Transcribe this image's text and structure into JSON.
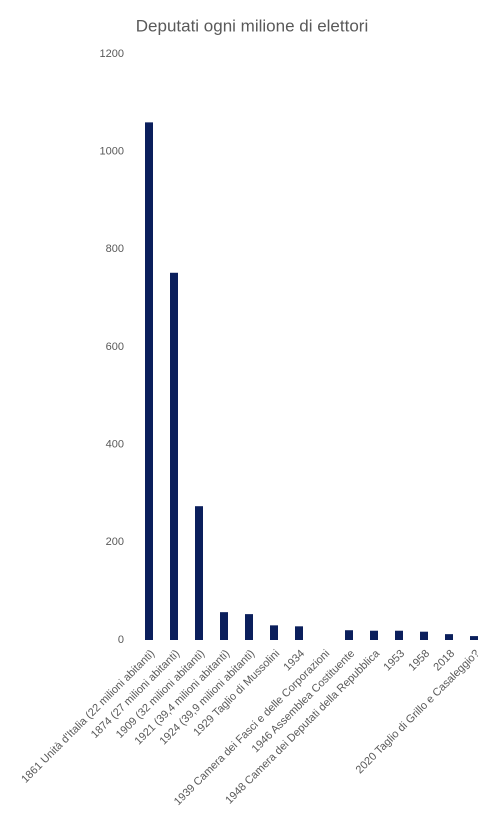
{
  "chart_data": {
    "type": "bar",
    "title": "Deputati ogni milione di elettori",
    "categories": [
      "1861 Unità d'Italia (22 milioni abitanti)",
      "1874 (27 milioni abitanti)",
      "1909 (32 milioni abitanti)",
      "1921 (39,4 milioni abitanti)",
      "1924 (39,9 milioni abitanti)",
      "1929 Taglio di Mussolini",
      "1934",
      "1939 Camera dei Fasci e delle Corporazioni",
      "1946 Assemblea Costituente",
      "1948 Camera dei Deputati della Repubblica",
      "1953",
      "1958",
      "2018",
      "2020 Taglio di Grillo e Casaleggio?"
    ],
    "values": [
      1060,
      752,
      274,
      57,
      53,
      30,
      28,
      0,
      20,
      19,
      19,
      17,
      12,
      8
    ],
    "color": "#0b1f5c",
    "ylim": [
      0,
      1200
    ],
    "yticks": [
      0,
      200,
      400,
      600,
      800,
      1000,
      1200
    ],
    "grid": true
  }
}
